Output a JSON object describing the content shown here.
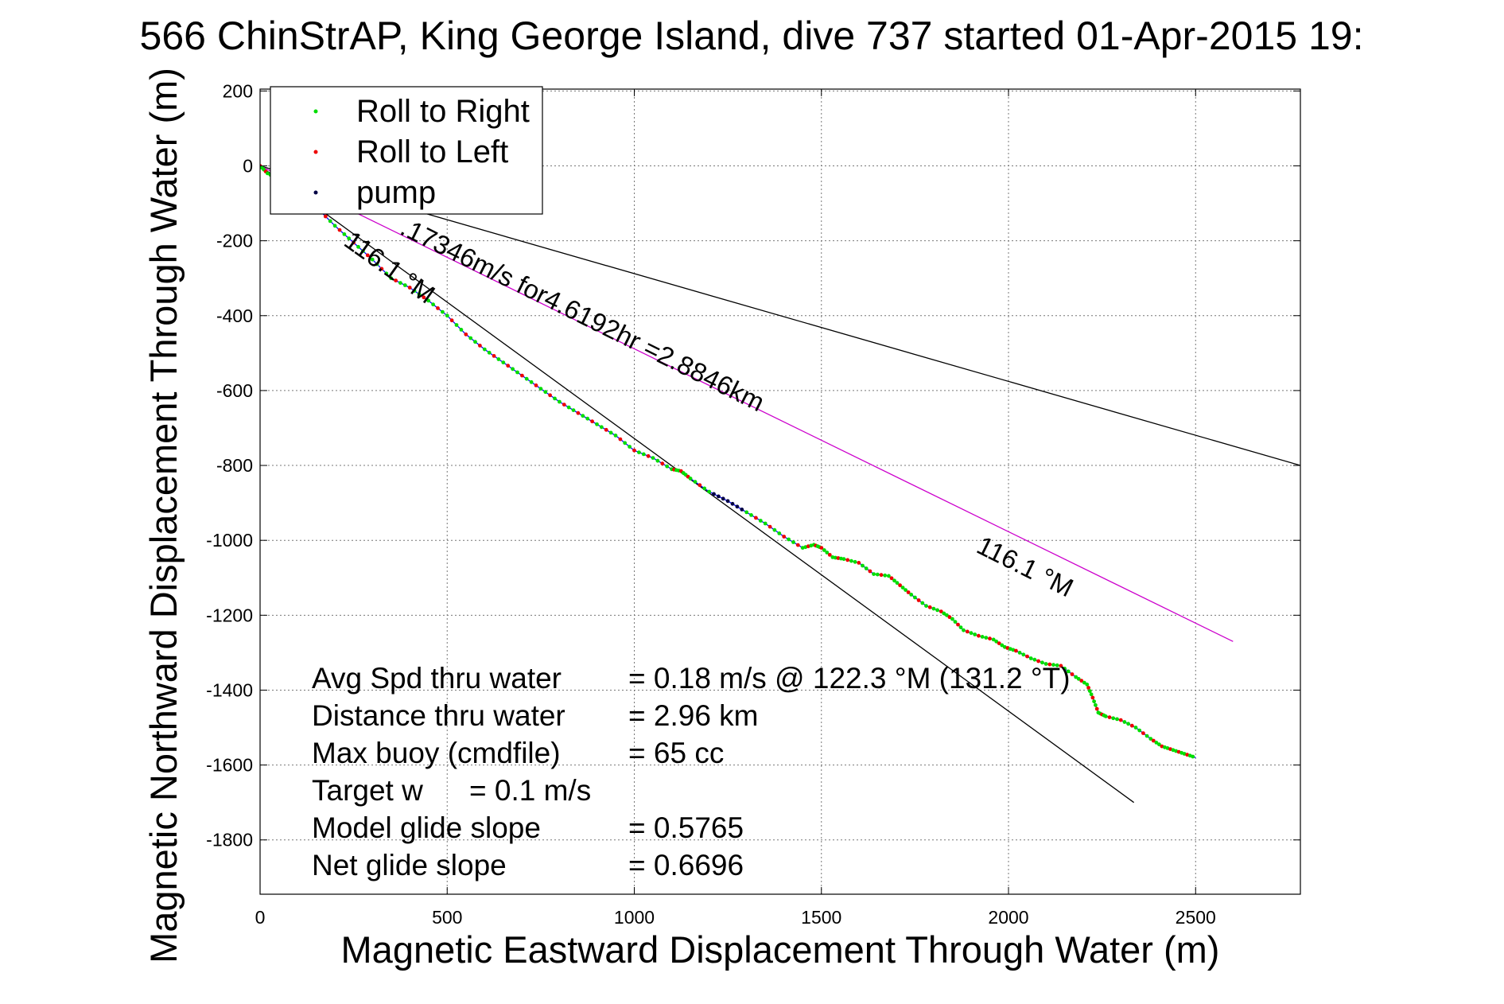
{
  "chart_data": {
    "type": "line",
    "title": "566 ChinStrAP, King George Island, dive 737 started 01-Apr-2015 19:",
    "xlabel": "Magnetic Eastward Displacement Through Water (m)",
    "ylabel": "Magnetic Northward Displacement Through Water (m)",
    "xlim": [
      0,
      2780
    ],
    "ylim": [
      -1945,
      205
    ],
    "xticks": [
      0,
      500,
      1000,
      1500,
      2000,
      2500
    ],
    "yticks": [
      200,
      0,
      -200,
      -400,
      -600,
      -800,
      -1000,
      -1200,
      -1400,
      -1600,
      -1800
    ],
    "xtick_labels": [
      "0",
      "500",
      "1000",
      "1500",
      "2000",
      "2500"
    ],
    "ytick_labels": [
      "200",
      "0",
      "-200",
      "-400",
      "-600",
      "-800",
      "-1000",
      "-1200",
      "-1400",
      "-1600",
      "-1800"
    ],
    "grid": true,
    "legend_position": "top-left",
    "legend": [
      {
        "label": "Roll to Right",
        "color": "#00dd00"
      },
      {
        "label": "Roll to Left",
        "color": "#ee0000"
      },
      {
        "label": "pump",
        "color": "#000044"
      }
    ],
    "reference_lines": [
      {
        "x": [
          0,
          2780
        ],
        "y": [
          0,
          -800
        ],
        "color": "#000000"
      },
      {
        "x": [
          0,
          2600
        ],
        "y": [
          0,
          -1270
        ],
        "color": "#cc00cc"
      },
      {
        "x": [
          0,
          2335
        ],
        "y": [
          0,
          -1700
        ],
        "color": "#000000"
      }
    ],
    "track": {
      "color": "#0000ff",
      "x": [
        0,
        20,
        50,
        100,
        150,
        200,
        250,
        300,
        350,
        400,
        450,
        500,
        550,
        600,
        650,
        700,
        750,
        800,
        850,
        900,
        950,
        1000,
        1050,
        1100,
        1125,
        1150,
        1200,
        1250,
        1300,
        1350,
        1400,
        1450,
        1480,
        1500,
        1530,
        1560,
        1600,
        1640,
        1680,
        1710,
        1740,
        1780,
        1820,
        1850,
        1880,
        1920,
        1960,
        1990,
        2020,
        2060,
        2100,
        2140,
        2180,
        2210,
        2225,
        2240,
        2260,
        2300,
        2340,
        2380,
        2410,
        2440,
        2470,
        2500
      ],
      "y": [
        0,
        -20,
        -35,
        -60,
        -110,
        -160,
        -205,
        -250,
        -300,
        -325,
        -360,
        -400,
        -450,
        -490,
        -525,
        -560,
        -595,
        -630,
        -660,
        -690,
        -720,
        -760,
        -780,
        -810,
        -815,
        -835,
        -870,
        -895,
        -925,
        -955,
        -990,
        -1020,
        -1012,
        -1020,
        -1045,
        -1050,
        -1060,
        -1090,
        -1095,
        -1120,
        -1145,
        -1175,
        -1190,
        -1210,
        -1240,
        -1255,
        -1265,
        -1285,
        -1295,
        -1315,
        -1330,
        -1335,
        -1365,
        -1385,
        -1420,
        -1460,
        -1470,
        -1480,
        -1500,
        -1530,
        -1550,
        -1560,
        -1570,
        -1580
      ]
    },
    "annotations": [
      {
        "text": ".17346m/s for4.6192hr =2.8846km",
        "x": 370,
        "y": -180,
        "angle": 26.4
      },
      {
        "text": "116.1 °M",
        "x": 220,
        "y": -210,
        "angle": 35.5
      },
      {
        "text": "116.1 °M",
        "x": 1910,
        "y": -1030,
        "angle": 26.4
      }
    ],
    "stats": [
      {
        "label": "Avg Spd thru water",
        "value": "=  0.18 m/s @ 122.3 °M (131.2 °T)"
      },
      {
        "label": "Distance thru water",
        "value": "=  2.96 km"
      },
      {
        "label": "Max buoy (cmdfile)",
        "value": "= 65 cc"
      },
      {
        "label": "Target w",
        "value": "= 0.1 m/s"
      },
      {
        "label": "Model glide slope",
        "value": "= 0.5765"
      },
      {
        "label": "Net glide slope",
        "value": "= 0.6696"
      }
    ]
  }
}
